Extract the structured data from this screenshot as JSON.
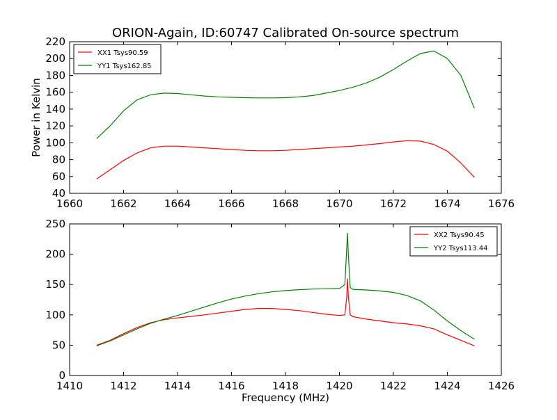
{
  "figure": {
    "title": "ORION-Again, ID:60747 Calibrated On-source spectrum"
  },
  "chart_data": [
    {
      "type": "line",
      "title": "ORION-Again, ID:60747 Calibrated On-source spectrum",
      "xlabel": "",
      "ylabel": "Power in Kelvin",
      "xlim": [
        1660,
        1676
      ],
      "ylim": [
        40,
        220
      ],
      "xticks": [
        1660,
        1662,
        1664,
        1666,
        1668,
        1670,
        1672,
        1674,
        1676
      ],
      "yticks": [
        40,
        60,
        80,
        100,
        120,
        140,
        160,
        180,
        200,
        220
      ],
      "grid": false,
      "legend_position": "top-left",
      "series": [
        {
          "name": "XX1 Tsys90.59",
          "color": "#ff0000",
          "x": [
            1661.0,
            1661.5,
            1662.0,
            1662.5,
            1663.0,
            1663.5,
            1664.0,
            1664.5,
            1665.0,
            1665.5,
            1666.0,
            1666.5,
            1667.0,
            1667.5,
            1668.0,
            1668.5,
            1669.0,
            1669.5,
            1670.0,
            1670.5,
            1671.0,
            1671.5,
            1672.0,
            1672.5,
            1673.0,
            1673.5,
            1674.0,
            1674.5,
            1675.0
          ],
          "values": [
            57,
            68,
            79,
            88,
            94,
            96,
            96,
            95,
            94,
            93,
            92,
            91,
            90.5,
            90.5,
            91,
            92,
            93,
            94,
            95,
            96,
            97.5,
            99,
            101,
            102.5,
            102,
            98,
            90,
            76,
            59
          ]
        },
        {
          "name": "YY1 Tsys162.85",
          "color": "#008000",
          "x": [
            1661.0,
            1661.5,
            1662.0,
            1662.5,
            1663.0,
            1663.5,
            1664.0,
            1664.5,
            1665.0,
            1665.5,
            1666.0,
            1666.5,
            1667.0,
            1667.5,
            1668.0,
            1668.5,
            1669.0,
            1669.5,
            1670.0,
            1670.5,
            1671.0,
            1671.5,
            1672.0,
            1672.5,
            1673.0,
            1673.5,
            1674.0,
            1674.5,
            1675.0
          ],
          "values": [
            105,
            120,
            138,
            151,
            157,
            159,
            158.5,
            157,
            155.5,
            154.5,
            154,
            153.5,
            153.3,
            153.3,
            153.5,
            154.5,
            156,
            159,
            162,
            166,
            171,
            178,
            187,
            197,
            206,
            209,
            200,
            180,
            141
          ]
        }
      ]
    },
    {
      "type": "line",
      "title": "",
      "xlabel": "Frequency (MHz)",
      "ylabel": "",
      "xlim": [
        1410,
        1426
      ],
      "ylim": [
        0,
        250
      ],
      "xticks": [
        1410,
        1412,
        1414,
        1416,
        1418,
        1420,
        1422,
        1424,
        1426
      ],
      "yticks": [
        0,
        50,
        100,
        150,
        200,
        250
      ],
      "grid": false,
      "legend_position": "top-right",
      "series": [
        {
          "name": "XX2 Tsys90.45",
          "color": "#ff0000",
          "x": [
            1411.0,
            1411.5,
            1412.0,
            1412.5,
            1413.0,
            1413.5,
            1414.0,
            1414.5,
            1415.0,
            1415.5,
            1416.0,
            1416.5,
            1417.0,
            1417.5,
            1418.0,
            1418.5,
            1419.0,
            1419.5,
            1420.0,
            1420.2,
            1420.27,
            1420.3,
            1420.33,
            1420.4,
            1420.5,
            1421.0,
            1421.5,
            1422.0,
            1422.5,
            1423.0,
            1423.5,
            1424.0,
            1424.5,
            1425.0
          ],
          "values": [
            50,
            58,
            69,
            79,
            87,
            92,
            95,
            97.5,
            100,
            103,
            106,
            109,
            110.5,
            110.5,
            109,
            107,
            104,
            101,
            99,
            100,
            130,
            160,
            130,
            100,
            97,
            93,
            90,
            87,
            85,
            82,
            77,
            67,
            58,
            49
          ]
        },
        {
          "name": "YY2 Tsys113.44",
          "color": "#008000",
          "x": [
            1411.0,
            1411.5,
            1412.0,
            1412.5,
            1413.0,
            1413.5,
            1414.0,
            1414.5,
            1415.0,
            1415.5,
            1416.0,
            1416.5,
            1417.0,
            1417.5,
            1418.0,
            1418.5,
            1419.0,
            1419.5,
            1420.0,
            1420.2,
            1420.27,
            1420.3,
            1420.33,
            1420.4,
            1420.5,
            1421.0,
            1421.5,
            1422.0,
            1422.5,
            1423.0,
            1423.5,
            1424.0,
            1424.5,
            1425.0
          ],
          "values": [
            49,
            57,
            67,
            77,
            86,
            93,
            99,
            106,
            113,
            120,
            126,
            131,
            135,
            138,
            140,
            141.5,
            142.5,
            143,
            143.5,
            150,
            210,
            235,
            200,
            145,
            142,
            141,
            139.5,
            137,
            132,
            123,
            108,
            90,
            74,
            60
          ]
        }
      ]
    }
  ]
}
